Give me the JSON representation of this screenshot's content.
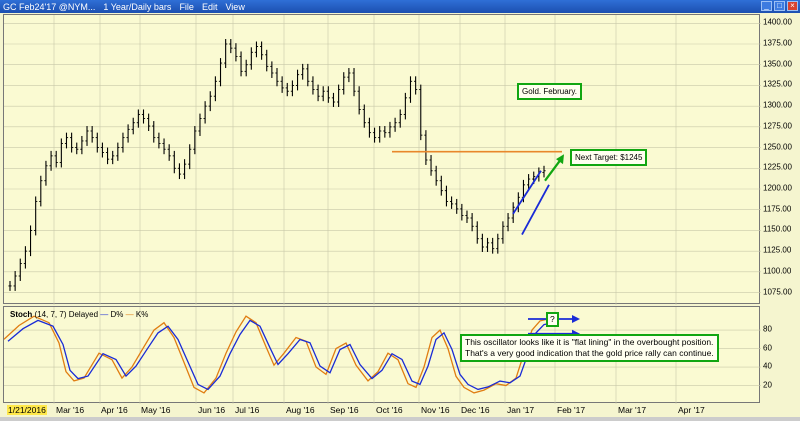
{
  "window": {
    "title": "GC Feb24'17 @NYM...",
    "timeframe": "1 Year/Daily bars",
    "menu": [
      "File",
      "Edit",
      "View"
    ]
  },
  "price_axis": {
    "ticks": [
      1400,
      1375,
      1350,
      1325,
      1300,
      1275,
      1250,
      1225,
      1200,
      1175,
      1150,
      1125,
      1100,
      1075
    ],
    "labels": [
      "1400.00",
      "1375.00",
      "1350.00",
      "1325.00",
      "1300.00",
      "1275.00",
      "1250.00",
      "1225.00",
      "1200.00",
      "1175.00",
      "1150.00",
      "1125.00",
      "1100.00",
      "1075.00"
    ],
    "range": [
      1060,
      1410
    ]
  },
  "osc_axis": {
    "ticks": [
      20,
      40,
      60,
      80
    ],
    "range": [
      0,
      105
    ]
  },
  "x_axis": {
    "labels": [
      "1/21/2016",
      "Mar '16",
      "Apr '16",
      "May '16",
      "Jun '16",
      "Jul '16",
      "Aug '16",
      "Sep '16",
      "Oct '16",
      "Nov '16",
      "Dec '16",
      "Jan '17",
      "Feb '17",
      "Mar '17",
      "Apr '17"
    ]
  },
  "oscillator": {
    "name": "Stoch",
    "params": "(14, 7, 7) Delayed",
    "legend": [
      "D%",
      "K%"
    ],
    "colors": {
      "d": "#1a2bd6",
      "k": "#e07d12"
    }
  },
  "annotations": {
    "title": "Gold. February.",
    "target": "Next Target: $1245",
    "question": "?",
    "comment_line1": "This oscillator looks like it is \"flat lining\" in the overbought position.",
    "comment_line2": "That's a very good indication that the gold price rally can continue."
  },
  "chart_data": {
    "type": "line",
    "ylabel": "",
    "xlabel": "",
    "target_level": 1245,
    "series": [
      {
        "values": [
          1083,
          1095,
          1110,
          1125,
          1150,
          1185,
          1210,
          1228,
          1240,
          1232,
          1255,
          1262,
          1250,
          1248,
          1258,
          1270,
          1262,
          1250,
          1244,
          1236,
          1240,
          1250,
          1262,
          1272,
          1280,
          1290,
          1285,
          1276,
          1262,
          1255,
          1248,
          1240,
          1225,
          1218,
          1230,
          1248,
          1270,
          1285,
          1300,
          1312,
          1330,
          1352,
          1375,
          1370,
          1360,
          1342,
          1350,
          1365,
          1372,
          1362,
          1348,
          1340,
          1330,
          1322,
          1318,
          1325,
          1338,
          1345,
          1330,
          1320,
          1312,
          1318,
          1310,
          1305,
          1320,
          1335,
          1340,
          1318,
          1296,
          1280,
          1268,
          1262,
          1270,
          1268,
          1275,
          1280,
          1290,
          1310,
          1330,
          1320,
          1265,
          1235,
          1222,
          1210,
          1198,
          1185,
          1182,
          1176,
          1168,
          1165,
          1155,
          1140,
          1130,
          1135,
          1128,
          1140,
          1155,
          1165,
          1178,
          1190,
          1205,
          1212,
          1215,
          1220,
          1222
        ]
      }
    ]
  }
}
